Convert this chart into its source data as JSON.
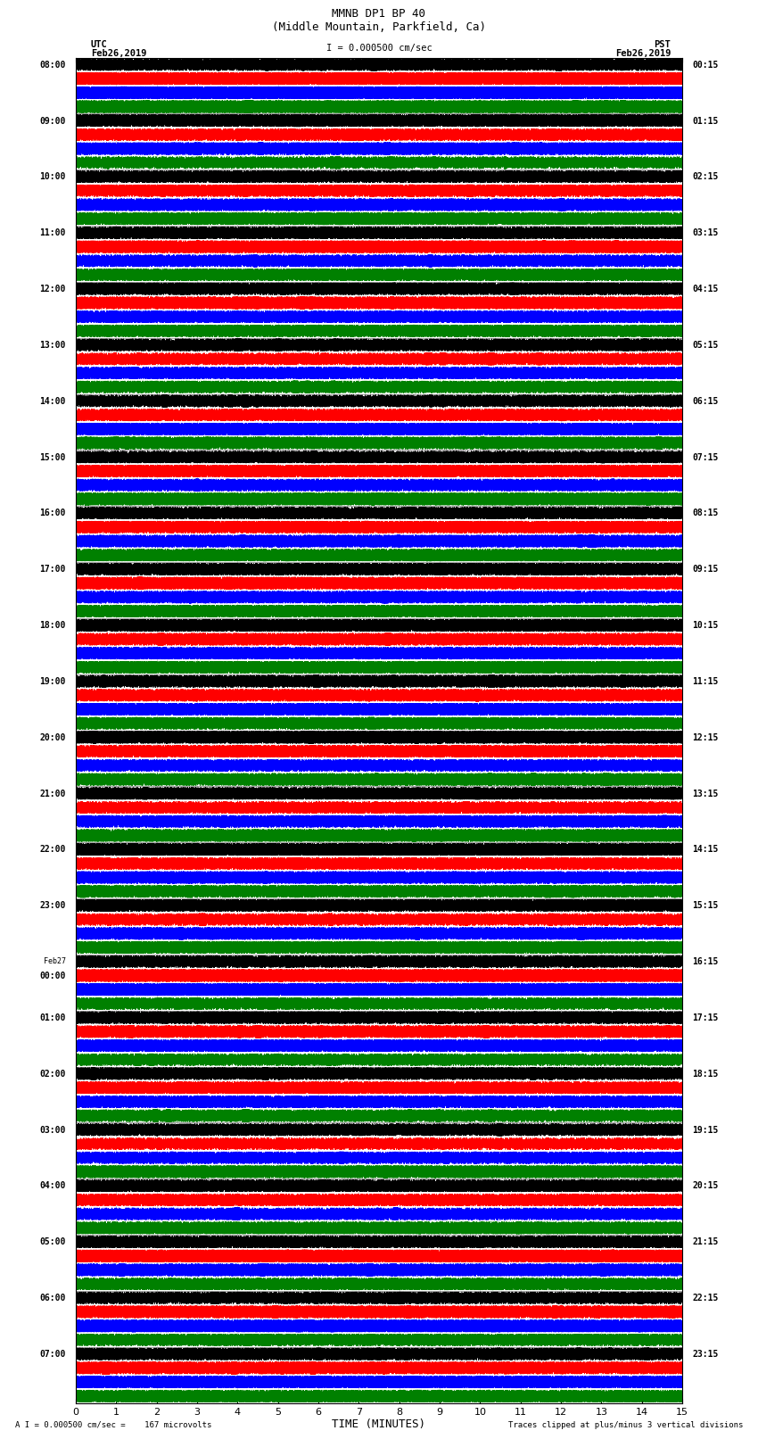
{
  "title_line1": "MMNB DP1 BP 40",
  "title_line2": "(Middle Mountain, Parkfield, Ca)",
  "scale_text": "I = 0.000500 cm/sec",
  "utc_label": "UTC",
  "utc_date": "Feb26,2019",
  "pst_label": "PST",
  "pst_date": "Feb26,2019",
  "xlabel": "TIME (MINUTES)",
  "footer_left": "A I = 0.000500 cm/sec =    167 microvolts",
  "footer_right": "Traces clipped at plus/minus 3 vertical divisions",
  "trace_colors": [
    "black",
    "red",
    "blue",
    "green"
  ],
  "utc_times": [
    "08:00",
    "09:00",
    "10:00",
    "11:00",
    "12:00",
    "13:00",
    "14:00",
    "15:00",
    "16:00",
    "17:00",
    "18:00",
    "19:00",
    "20:00",
    "21:00",
    "22:00",
    "23:00",
    "Feb27\n00:00",
    "01:00",
    "02:00",
    "03:00",
    "04:00",
    "05:00",
    "06:00",
    "07:00"
  ],
  "pst_times": [
    "00:15",
    "01:15",
    "02:15",
    "03:15",
    "04:15",
    "05:15",
    "06:15",
    "07:15",
    "08:15",
    "09:15",
    "10:15",
    "11:15",
    "12:15",
    "13:15",
    "14:15",
    "15:15",
    "16:15",
    "17:15",
    "18:15",
    "19:15",
    "20:15",
    "21:15",
    "22:15",
    "23:15"
  ],
  "n_rows": 24,
  "traces_per_row": 4,
  "minutes": 15,
  "samples_per_sec": 100,
  "background_color": "white",
  "figwidth": 8.5,
  "figheight": 16.13,
  "noise_seed": 12345,
  "minute_gridlines": true,
  "gridline_color": "#888888",
  "gridline_alpha": 0.6,
  "gridline_lw": 0.4
}
